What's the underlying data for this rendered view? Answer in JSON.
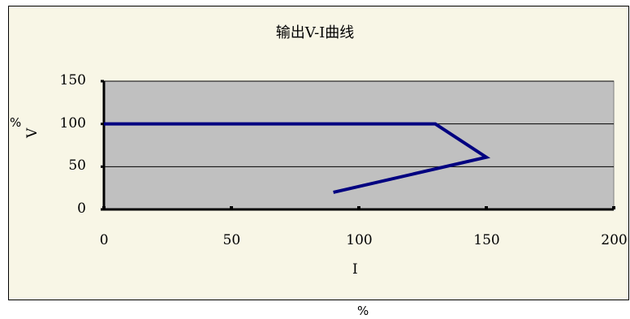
{
  "chart_data": {
    "type": "line",
    "title": "输出V-I曲线",
    "xlabel": "I",
    "xlabel_unit": "%",
    "ylabel": "V",
    "ylabel_unit": "%",
    "xlim": [
      0,
      200
    ],
    "ylim": [
      0,
      150
    ],
    "x_ticks": [
      0,
      50,
      100,
      150,
      200
    ],
    "y_ticks": [
      0,
      50,
      100,
      150
    ],
    "grid": "horizontal",
    "series": [
      {
        "x": [
          0,
          130,
          150,
          90
        ],
        "y": [
          100,
          100,
          61,
          20
        ]
      }
    ],
    "colors": {
      "plot_bg": "#c0c0c0",
      "frame_bg": "#f8f6e6",
      "line": "#000080"
    }
  }
}
